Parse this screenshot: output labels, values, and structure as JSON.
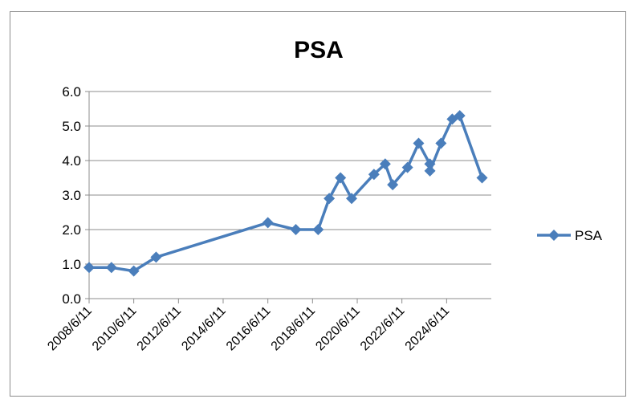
{
  "chart_data": {
    "type": "line",
    "title": "PSA",
    "xlabel": "",
    "ylabel": "",
    "ylim": [
      0,
      6
    ],
    "y_ticks": [
      "0.0",
      "1.0",
      "2.0",
      "3.0",
      "4.0",
      "5.0",
      "6.0"
    ],
    "x_range": [
      "2008/6/11",
      "2026/6/11"
    ],
    "x_ticks": [
      "2008/6/11",
      "2010/6/11",
      "2012/6/11",
      "2014/6/11",
      "2016/6/11",
      "2018/6/11",
      "2020/6/11",
      "2022/6/11",
      "2024/6/11"
    ],
    "grid": true,
    "legend_position": "right",
    "series": [
      {
        "name": "PSA",
        "color": "#4a7ebb",
        "points": [
          {
            "x": "2008/6/11",
            "y": 0.9
          },
          {
            "x": "2009/6/11",
            "y": 0.9
          },
          {
            "x": "2010/6/11",
            "y": 0.8
          },
          {
            "x": "2011/6/11",
            "y": 1.2
          },
          {
            "x": "2016/6/11",
            "y": 2.2
          },
          {
            "x": "2017/9/11",
            "y": 2.0
          },
          {
            "x": "2018/9/11",
            "y": 2.0
          },
          {
            "x": "2019/3/11",
            "y": 2.9
          },
          {
            "x": "2019/9/11",
            "y": 3.5
          },
          {
            "x": "2020/3/11",
            "y": 2.9
          },
          {
            "x": "2021/3/11",
            "y": 3.6
          },
          {
            "x": "2021/9/11",
            "y": 3.9
          },
          {
            "x": "2022/1/11",
            "y": 3.3
          },
          {
            "x": "2022/9/11",
            "y": 3.8
          },
          {
            "x": "2023/3/11",
            "y": 4.5
          },
          {
            "x": "2023/9/11",
            "y": 3.9
          },
          {
            "x": "2023/9/12",
            "y": 3.7
          },
          {
            "x": "2024/3/11",
            "y": 4.5
          },
          {
            "x": "2024/9/11",
            "y": 5.2
          },
          {
            "x": "2025/1/11",
            "y": 5.3
          },
          {
            "x": "2026/1/11",
            "y": 3.5
          }
        ]
      }
    ]
  }
}
